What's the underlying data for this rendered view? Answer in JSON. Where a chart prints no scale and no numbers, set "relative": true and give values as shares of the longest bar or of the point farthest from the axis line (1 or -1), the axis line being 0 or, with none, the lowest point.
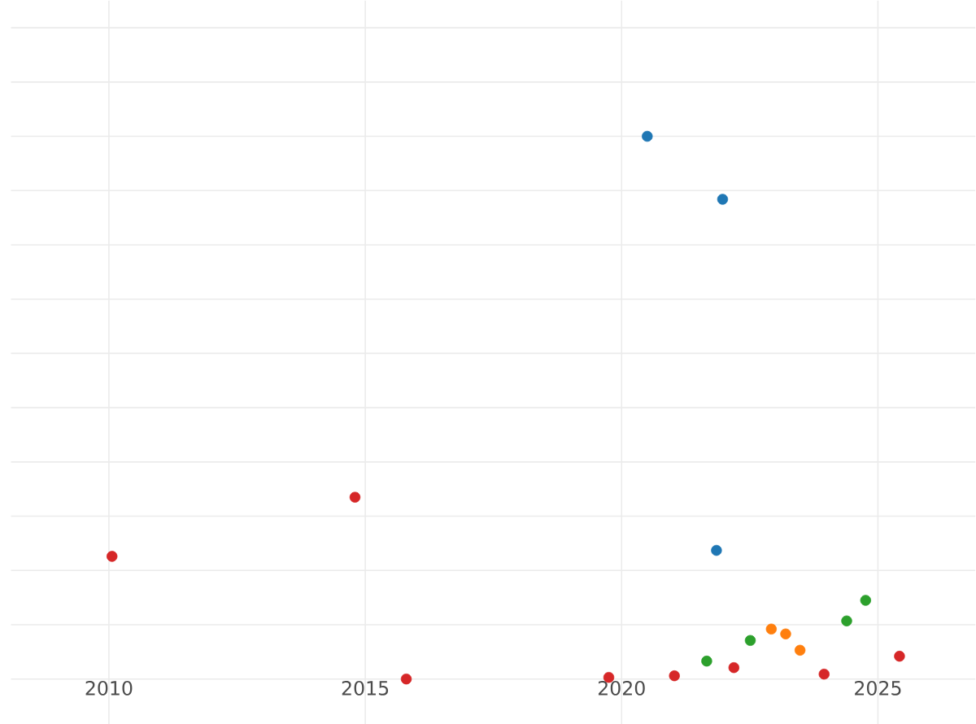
{
  "chart_data": {
    "type": "scatter",
    "relative": true,
    "xlim": [
      2008.09,
      2026.9
    ],
    "xticks": [
      2010,
      2015,
      2020,
      2025
    ],
    "grid": true,
    "marker": "circle",
    "series": [
      {
        "color": "#1f77b4",
        "x": [
          2020.5,
          2021.97,
          2021.85
        ],
        "values": [
          1,
          0.884,
          0.237
        ]
      },
      {
        "color": "#d62728",
        "x": [
          2010.06,
          2014.8,
          2015.8,
          2019.75,
          2021.03,
          2022.19,
          2023.95,
          2025.42
        ],
        "values": [
          0.226,
          0.335,
          0,
          0.003,
          0.006,
          0.021,
          0.009,
          0.042
        ]
      },
      {
        "color": "#2ca02c",
        "x": [
          2021.66,
          2022.51,
          2024.39,
          2024.76
        ],
        "values": [
          0.033,
          0.071,
          0.107,
          0.145
        ]
      },
      {
        "color": "#ff7f0e",
        "x": [
          2022.92,
          2023.2,
          2023.48
        ],
        "values": [
          0.092,
          0.083,
          0.053
        ]
      }
    ]
  }
}
